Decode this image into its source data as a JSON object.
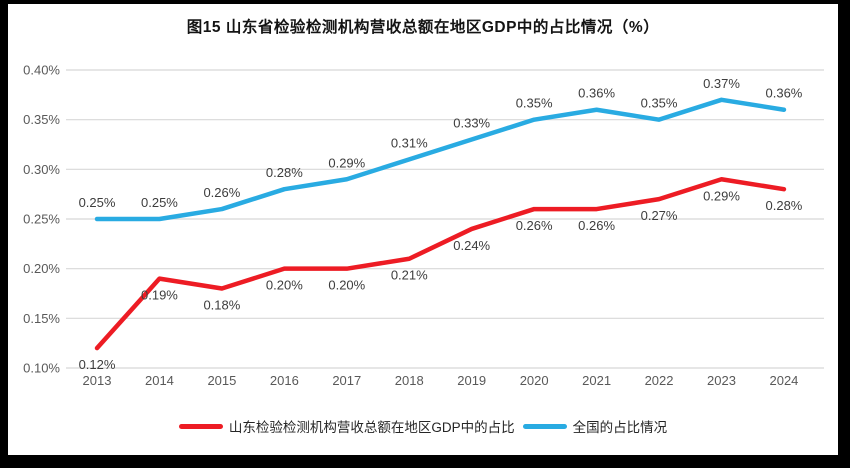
{
  "title": "图15  山东省检验检测机构营收总额在地区GDP中的占比情况（%）",
  "colors": {
    "shandong_red": "#ed1c24",
    "national_blue": "#29abe2",
    "grid": "#d8d8d8",
    "axis_text": "#595959",
    "data_label": "#3d3d3d",
    "frame": "#000000",
    "background": "#ffffff"
  },
  "legend": [
    {
      "label": "山东检验检测机构营收总额在地区GDP中的占比",
      "color": "#ed1c24"
    },
    {
      "label": "全国的占比情况",
      "color": "#29abe2"
    }
  ],
  "chart_data": {
    "type": "line",
    "title": "图15  山东省检验检测机构营收总额在地区GDP中的占比情况（%）",
    "categories": [
      "2013",
      "2014",
      "2015",
      "2016",
      "2017",
      "2018",
      "2019",
      "2020",
      "2021",
      "2022",
      "2023",
      "2024"
    ],
    "series": [
      {
        "name": "山东检验检测机构营收总额在地区GDP中的占比",
        "color": "#ed1c24",
        "values": [
          0.12,
          0.19,
          0.18,
          0.2,
          0.2,
          0.21,
          0.24,
          0.26,
          0.26,
          0.27,
          0.29,
          0.28
        ],
        "labels": [
          "0.12%",
          "0.19%",
          "0.18%",
          "0.20%",
          "0.20%",
          "0.21%",
          "0.24%",
          "0.26%",
          "0.26%",
          "0.27%",
          "0.29%",
          "0.28%"
        ],
        "label_position": "below"
      },
      {
        "name": "全国的占比情况",
        "color": "#29abe2",
        "values": [
          0.25,
          0.25,
          0.26,
          0.28,
          0.29,
          0.31,
          0.33,
          0.35,
          0.36,
          0.35,
          0.37,
          0.36
        ],
        "labels": [
          "0.25%",
          "0.25%",
          "0.26%",
          "0.28%",
          "0.29%",
          "0.31%",
          "0.33%",
          "0.35%",
          "0.36%",
          "0.35%",
          "0.37%",
          "0.36%"
        ],
        "label_position": "above"
      }
    ],
    "xlabel": "",
    "ylabel": "",
    "ylim": [
      0.1,
      0.4
    ],
    "ytick_step": 0.05,
    "ytick_labels": [
      "0.10%",
      "0.15%",
      "0.20%",
      "0.25%",
      "0.30%",
      "0.35%",
      "0.40%"
    ],
    "grid": true,
    "legend_position": "bottom"
  }
}
